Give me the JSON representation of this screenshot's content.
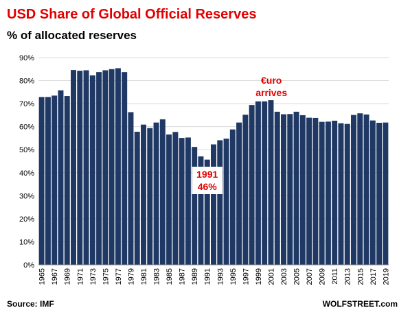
{
  "title": "USD Share of Global  Official Reserves",
  "subtitle": "% of allocated reserves",
  "source": "Source: IMF",
  "credit": "WOLFSTREET.com",
  "colors": {
    "bar": "#1f3864",
    "title": "#e00000",
    "annotation": "#e00000",
    "grid": "#d9d9d9"
  },
  "chart_data": {
    "type": "bar",
    "title": "USD Share of Global  Official Reserves",
    "subtitle": "% of allocated reserves",
    "xlabel": "",
    "ylabel": "",
    "ylim": [
      0,
      90
    ],
    "yticks": [
      "0%",
      "10%",
      "20%",
      "30%",
      "40%",
      "50%",
      "60%",
      "70%",
      "80%",
      "90%"
    ],
    "ytick_values": [
      0,
      10,
      20,
      30,
      40,
      50,
      60,
      70,
      80,
      90
    ],
    "grid": true,
    "xtick_labels": [
      "1965",
      "1967",
      "1969",
      "1971",
      "1973",
      "1975",
      "1977",
      "1979",
      "1981",
      "1983",
      "1985",
      "1987",
      "1989",
      "1991",
      "1993",
      "1995",
      "1997",
      "1999",
      "2001",
      "2003",
      "2005",
      "2007",
      "2009",
      "2011",
      "2013",
      "2015",
      "2017",
      "2019"
    ],
    "categories": [
      "1965",
      "1966",
      "1967",
      "1968",
      "1969",
      "1970",
      "1971",
      "1972",
      "1973",
      "1974",
      "1975",
      "1976",
      "1977",
      "1978",
      "1979",
      "1980",
      "1981",
      "1982",
      "1983",
      "1984",
      "1985",
      "1986",
      "1987",
      "1988",
      "1989",
      "1990",
      "1991",
      "1992",
      "1993",
      "1994",
      "1995",
      "1996",
      "1997",
      "1998",
      "1999",
      "2000",
      "2001",
      "2002",
      "2003",
      "2004",
      "2005",
      "2006",
      "2007",
      "2008",
      "2009",
      "2010",
      "2011",
      "2012",
      "2013",
      "2014",
      "2015",
      "2016",
      "2017",
      "2018",
      "2019"
    ],
    "values": [
      72.9,
      72.9,
      73.5,
      75.8,
      73.3,
      84.6,
      84.3,
      84.5,
      82.3,
      83.7,
      84.5,
      85.0,
      85.4,
      83.7,
      66.3,
      57.8,
      60.9,
      59.4,
      61.8,
      63.2,
      56.6,
      57.7,
      55.1,
      55.3,
      51.2,
      47.1,
      45.7,
      52.3,
      54.1,
      54.8,
      58.8,
      61.8,
      65.2,
      69.4,
      71.0,
      71.0,
      71.5,
      66.5,
      65.4,
      65.5,
      66.5,
      65.0,
      63.9,
      63.8,
      62.1,
      62.2,
      62.6,
      61.5,
      61.2,
      65.1,
      65.8,
      65.3,
      62.7,
      61.7,
      61.8
    ],
    "annotations": [
      {
        "text": [
          "€uro",
          "arrives"
        ],
        "category": "2000"
      },
      {
        "text": [
          "1991",
          "46%"
        ],
        "category": "1991"
      }
    ]
  }
}
